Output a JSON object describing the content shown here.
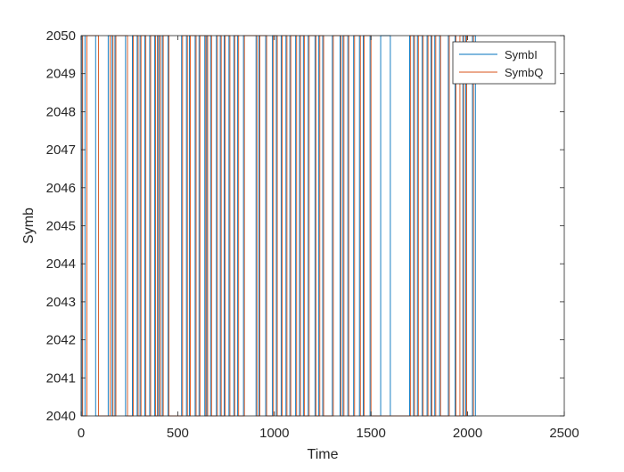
{
  "chart_data": {
    "type": "line",
    "title": "",
    "xlabel": "Time",
    "ylabel": "Symb",
    "xlim": [
      0,
      2500
    ],
    "ylim": [
      2040,
      2050
    ],
    "xticks": [
      0,
      500,
      1000,
      1500,
      2000,
      2500
    ],
    "yticks": [
      2040,
      2041,
      2042,
      2043,
      2044,
      2045,
      2046,
      2047,
      2048,
      2049,
      2050
    ],
    "grid": false,
    "legend_position": "top-right",
    "series": [
      {
        "name": "SymbI",
        "color": "#0072BD",
        "transitions_x": [
          5,
          20,
          75,
          140,
          160,
          175,
          230,
          265,
          290,
          305,
          330,
          355,
          380,
          395,
          405,
          420,
          450,
          520,
          545,
          560,
          590,
          610,
          640,
          650,
          670,
          700,
          720,
          740,
          765,
          790,
          810,
          840,
          905,
          920,
          955,
          990,
          1010,
          1035,
          1060,
          1080,
          1110,
          1130,
          1150,
          1175,
          1210,
          1230,
          1250,
          1300,
          1340,
          1355,
          1380,
          1410,
          1440,
          1460,
          1495,
          1550,
          1600,
          1700,
          1720,
          1740,
          1765,
          1790,
          1810,
          1830,
          1855,
          1900,
          1935,
          1975,
          1990,
          2025,
          2040
        ]
      },
      {
        "name": "SymbQ",
        "color": "#D95319",
        "transitions_x": [
          8,
          30,
          90,
          150,
          165,
          180,
          240,
          270,
          295,
          310,
          335,
          360,
          385,
          398,
          410,
          425,
          455,
          525,
          550,
          565,
          595,
          615,
          645,
          655,
          675,
          705,
          725,
          745,
          770,
          795,
          815,
          845,
          910,
          925,
          960,
          995,
          1015,
          1040,
          1065,
          1085,
          1115,
          1135,
          1155,
          1180,
          1215,
          1235,
          1255,
          1305,
          1345,
          1360,
          1385,
          1415,
          1445,
          1465,
          1500,
          1705,
          1725,
          1745,
          1770,
          1795,
          1815,
          1835,
          1860,
          1905,
          1940,
          1960,
          1980,
          1995,
          2030
        ]
      }
    ]
  }
}
